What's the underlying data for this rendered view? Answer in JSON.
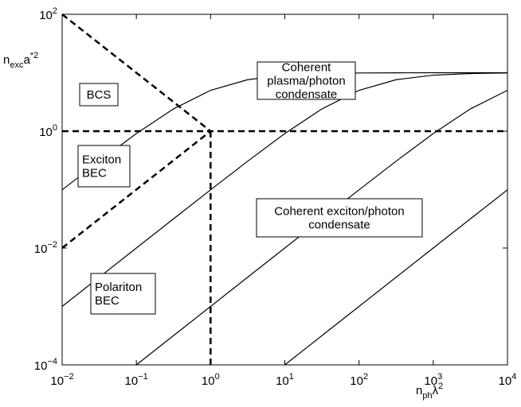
{
  "chart_data": {
    "type": "line",
    "xlabel": {
      "base": "n",
      "sub": "ph",
      "base2": "λ",
      "sup": "2"
    },
    "ylabel": {
      "base": "n",
      "sub": "exc",
      "base2": "a",
      "sup": "*2"
    },
    "xlog": true,
    "ylog": true,
    "xlim": [
      0.01,
      10000
    ],
    "ylim": [
      0.0001,
      100
    ],
    "xticks": [
      {
        "value": 0.01,
        "label": "10",
        "exponent": "−2"
      },
      {
        "value": 0.1,
        "label": "10",
        "exponent": "−1"
      },
      {
        "value": 1,
        "label": "10",
        "exponent": "0"
      },
      {
        "value": 10,
        "label": "10",
        "exponent": "1"
      },
      {
        "value": 100,
        "label": "10",
        "exponent": "2"
      },
      {
        "value": 1000,
        "label": "10",
        "exponent": "3"
      },
      {
        "value": 10000,
        "label": "10",
        "exponent": "4"
      }
    ],
    "yticks": [
      {
        "value": 0.0001,
        "label": "10",
        "exponent": "−4"
      },
      {
        "value": 0.01,
        "label": "10",
        "exponent": "−2"
      },
      {
        "value": 1,
        "label": "10",
        "exponent": "0"
      },
      {
        "value": 100,
        "label": "10",
        "exponent": "2"
      }
    ],
    "series": [
      {
        "color": "#000000",
        "style": "solid",
        "x": [
          0.01,
          0.0316,
          0.1,
          0.316,
          1,
          3.16,
          10,
          31.6,
          100,
          316,
          1000,
          3162,
          10000
        ],
        "values": [
          0.099,
          0.306,
          0.909,
          2.4,
          5,
          7.6,
          9.09,
          9.69,
          9.9,
          9.97,
          9.99,
          10.0,
          10.0
        ]
      },
      {
        "color": "#000000",
        "style": "solid",
        "x": [
          0.01,
          0.0316,
          0.1,
          0.316,
          1,
          3.16,
          10,
          31.6,
          100,
          316,
          1000,
          3162,
          10000
        ],
        "values": [
          0.001,
          0.00316,
          0.00999,
          0.0315,
          0.099,
          0.306,
          0.909,
          2.4,
          5,
          7.6,
          9.09,
          9.69,
          9.9
        ]
      },
      {
        "color": "#000000",
        "style": "solid",
        "x": [
          0.1,
          0.316,
          1,
          3.16,
          10,
          31.6,
          100,
          316,
          1000,
          3162,
          10000
        ],
        "values": [
          0.0001,
          0.000316,
          0.001,
          0.00316,
          0.00999,
          0.0315,
          0.099,
          0.306,
          0.909,
          2.4,
          5
        ]
      },
      {
        "color": "#000000",
        "style": "solid",
        "x": [
          10,
          31.6,
          100,
          316,
          1000,
          3162,
          10000
        ],
        "values": [
          0.0001,
          0.000316,
          0.001,
          0.00316,
          0.00999,
          0.0315,
          0.099
        ]
      },
      {
        "color": "#000000",
        "style": "dashed",
        "x": [
          0.01,
          1
        ],
        "values": [
          100,
          1
        ]
      },
      {
        "color": "#000000",
        "style": "dashed",
        "x": [
          0.01,
          1
        ],
        "values": [
          0.01,
          1
        ]
      },
      {
        "color": "#000000",
        "style": "dashed",
        "x": [
          0.01,
          10000
        ],
        "values": [
          1,
          1
        ]
      },
      {
        "color": "#000000",
        "style": "dashed",
        "x": [
          1,
          1
        ],
        "values": [
          0.0001,
          1
        ]
      }
    ],
    "annotations": [
      {
        "lines": [
          "BCS"
        ]
      },
      {
        "lines": [
          "Exciton",
          "BEC"
        ]
      },
      {
        "lines": [
          "Coherent",
          "plasma/photon",
          "condensate"
        ]
      },
      {
        "lines": [
          "Coherent exciton/photon",
          "condensate"
        ]
      },
      {
        "lines": [
          "Polariton",
          "BEC"
        ]
      }
    ]
  }
}
